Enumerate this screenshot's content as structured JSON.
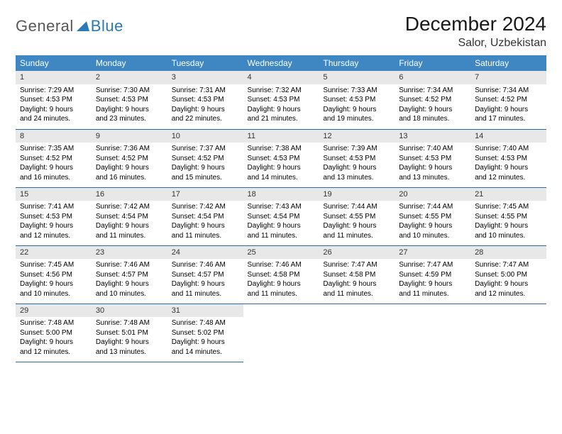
{
  "logo": {
    "text1": "General",
    "text2": "Blue"
  },
  "title": "December 2024",
  "location": "Salor, Uzbekistan",
  "colors": {
    "header_bg": "#3e87c3",
    "header_text": "#ffffff",
    "daynum_bg": "#e8e8e8",
    "row_divider": "#2a6aa0",
    "logo_gray": "#585858",
    "logo_blue": "#2a79b8",
    "page_bg": "#ffffff"
  },
  "weekdays": [
    "Sunday",
    "Monday",
    "Tuesday",
    "Wednesday",
    "Thursday",
    "Friday",
    "Saturday"
  ],
  "days": [
    {
      "n": "1",
      "sunrise": "Sunrise: 7:29 AM",
      "sunset": "Sunset: 4:53 PM",
      "day1": "Daylight: 9 hours",
      "day2": "and 24 minutes."
    },
    {
      "n": "2",
      "sunrise": "Sunrise: 7:30 AM",
      "sunset": "Sunset: 4:53 PM",
      "day1": "Daylight: 9 hours",
      "day2": "and 23 minutes."
    },
    {
      "n": "3",
      "sunrise": "Sunrise: 7:31 AM",
      "sunset": "Sunset: 4:53 PM",
      "day1": "Daylight: 9 hours",
      "day2": "and 22 minutes."
    },
    {
      "n": "4",
      "sunrise": "Sunrise: 7:32 AM",
      "sunset": "Sunset: 4:53 PM",
      "day1": "Daylight: 9 hours",
      "day2": "and 21 minutes."
    },
    {
      "n": "5",
      "sunrise": "Sunrise: 7:33 AM",
      "sunset": "Sunset: 4:53 PM",
      "day1": "Daylight: 9 hours",
      "day2": "and 19 minutes."
    },
    {
      "n": "6",
      "sunrise": "Sunrise: 7:34 AM",
      "sunset": "Sunset: 4:52 PM",
      "day1": "Daylight: 9 hours",
      "day2": "and 18 minutes."
    },
    {
      "n": "7",
      "sunrise": "Sunrise: 7:34 AM",
      "sunset": "Sunset: 4:52 PM",
      "day1": "Daylight: 9 hours",
      "day2": "and 17 minutes."
    },
    {
      "n": "8",
      "sunrise": "Sunrise: 7:35 AM",
      "sunset": "Sunset: 4:52 PM",
      "day1": "Daylight: 9 hours",
      "day2": "and 16 minutes."
    },
    {
      "n": "9",
      "sunrise": "Sunrise: 7:36 AM",
      "sunset": "Sunset: 4:52 PM",
      "day1": "Daylight: 9 hours",
      "day2": "and 16 minutes."
    },
    {
      "n": "10",
      "sunrise": "Sunrise: 7:37 AM",
      "sunset": "Sunset: 4:52 PM",
      "day1": "Daylight: 9 hours",
      "day2": "and 15 minutes."
    },
    {
      "n": "11",
      "sunrise": "Sunrise: 7:38 AM",
      "sunset": "Sunset: 4:53 PM",
      "day1": "Daylight: 9 hours",
      "day2": "and 14 minutes."
    },
    {
      "n": "12",
      "sunrise": "Sunrise: 7:39 AM",
      "sunset": "Sunset: 4:53 PM",
      "day1": "Daylight: 9 hours",
      "day2": "and 13 minutes."
    },
    {
      "n": "13",
      "sunrise": "Sunrise: 7:40 AM",
      "sunset": "Sunset: 4:53 PM",
      "day1": "Daylight: 9 hours",
      "day2": "and 13 minutes."
    },
    {
      "n": "14",
      "sunrise": "Sunrise: 7:40 AM",
      "sunset": "Sunset: 4:53 PM",
      "day1": "Daylight: 9 hours",
      "day2": "and 12 minutes."
    },
    {
      "n": "15",
      "sunrise": "Sunrise: 7:41 AM",
      "sunset": "Sunset: 4:53 PM",
      "day1": "Daylight: 9 hours",
      "day2": "and 12 minutes."
    },
    {
      "n": "16",
      "sunrise": "Sunrise: 7:42 AM",
      "sunset": "Sunset: 4:54 PM",
      "day1": "Daylight: 9 hours",
      "day2": "and 11 minutes."
    },
    {
      "n": "17",
      "sunrise": "Sunrise: 7:42 AM",
      "sunset": "Sunset: 4:54 PM",
      "day1": "Daylight: 9 hours",
      "day2": "and 11 minutes."
    },
    {
      "n": "18",
      "sunrise": "Sunrise: 7:43 AM",
      "sunset": "Sunset: 4:54 PM",
      "day1": "Daylight: 9 hours",
      "day2": "and 11 minutes."
    },
    {
      "n": "19",
      "sunrise": "Sunrise: 7:44 AM",
      "sunset": "Sunset: 4:55 PM",
      "day1": "Daylight: 9 hours",
      "day2": "and 11 minutes."
    },
    {
      "n": "20",
      "sunrise": "Sunrise: 7:44 AM",
      "sunset": "Sunset: 4:55 PM",
      "day1": "Daylight: 9 hours",
      "day2": "and 10 minutes."
    },
    {
      "n": "21",
      "sunrise": "Sunrise: 7:45 AM",
      "sunset": "Sunset: 4:55 PM",
      "day1": "Daylight: 9 hours",
      "day2": "and 10 minutes."
    },
    {
      "n": "22",
      "sunrise": "Sunrise: 7:45 AM",
      "sunset": "Sunset: 4:56 PM",
      "day1": "Daylight: 9 hours",
      "day2": "and 10 minutes."
    },
    {
      "n": "23",
      "sunrise": "Sunrise: 7:46 AM",
      "sunset": "Sunset: 4:57 PM",
      "day1": "Daylight: 9 hours",
      "day2": "and 10 minutes."
    },
    {
      "n": "24",
      "sunrise": "Sunrise: 7:46 AM",
      "sunset": "Sunset: 4:57 PM",
      "day1": "Daylight: 9 hours",
      "day2": "and 11 minutes."
    },
    {
      "n": "25",
      "sunrise": "Sunrise: 7:46 AM",
      "sunset": "Sunset: 4:58 PM",
      "day1": "Daylight: 9 hours",
      "day2": "and 11 minutes."
    },
    {
      "n": "26",
      "sunrise": "Sunrise: 7:47 AM",
      "sunset": "Sunset: 4:58 PM",
      "day1": "Daylight: 9 hours",
      "day2": "and 11 minutes."
    },
    {
      "n": "27",
      "sunrise": "Sunrise: 7:47 AM",
      "sunset": "Sunset: 4:59 PM",
      "day1": "Daylight: 9 hours",
      "day2": "and 11 minutes."
    },
    {
      "n": "28",
      "sunrise": "Sunrise: 7:47 AM",
      "sunset": "Sunset: 5:00 PM",
      "day1": "Daylight: 9 hours",
      "day2": "and 12 minutes."
    },
    {
      "n": "29",
      "sunrise": "Sunrise: 7:48 AM",
      "sunset": "Sunset: 5:00 PM",
      "day1": "Daylight: 9 hours",
      "day2": "and 12 minutes."
    },
    {
      "n": "30",
      "sunrise": "Sunrise: 7:48 AM",
      "sunset": "Sunset: 5:01 PM",
      "day1": "Daylight: 9 hours",
      "day2": "and 13 minutes."
    },
    {
      "n": "31",
      "sunrise": "Sunrise: 7:48 AM",
      "sunset": "Sunset: 5:02 PM",
      "day1": "Daylight: 9 hours",
      "day2": "and 14 minutes."
    }
  ]
}
